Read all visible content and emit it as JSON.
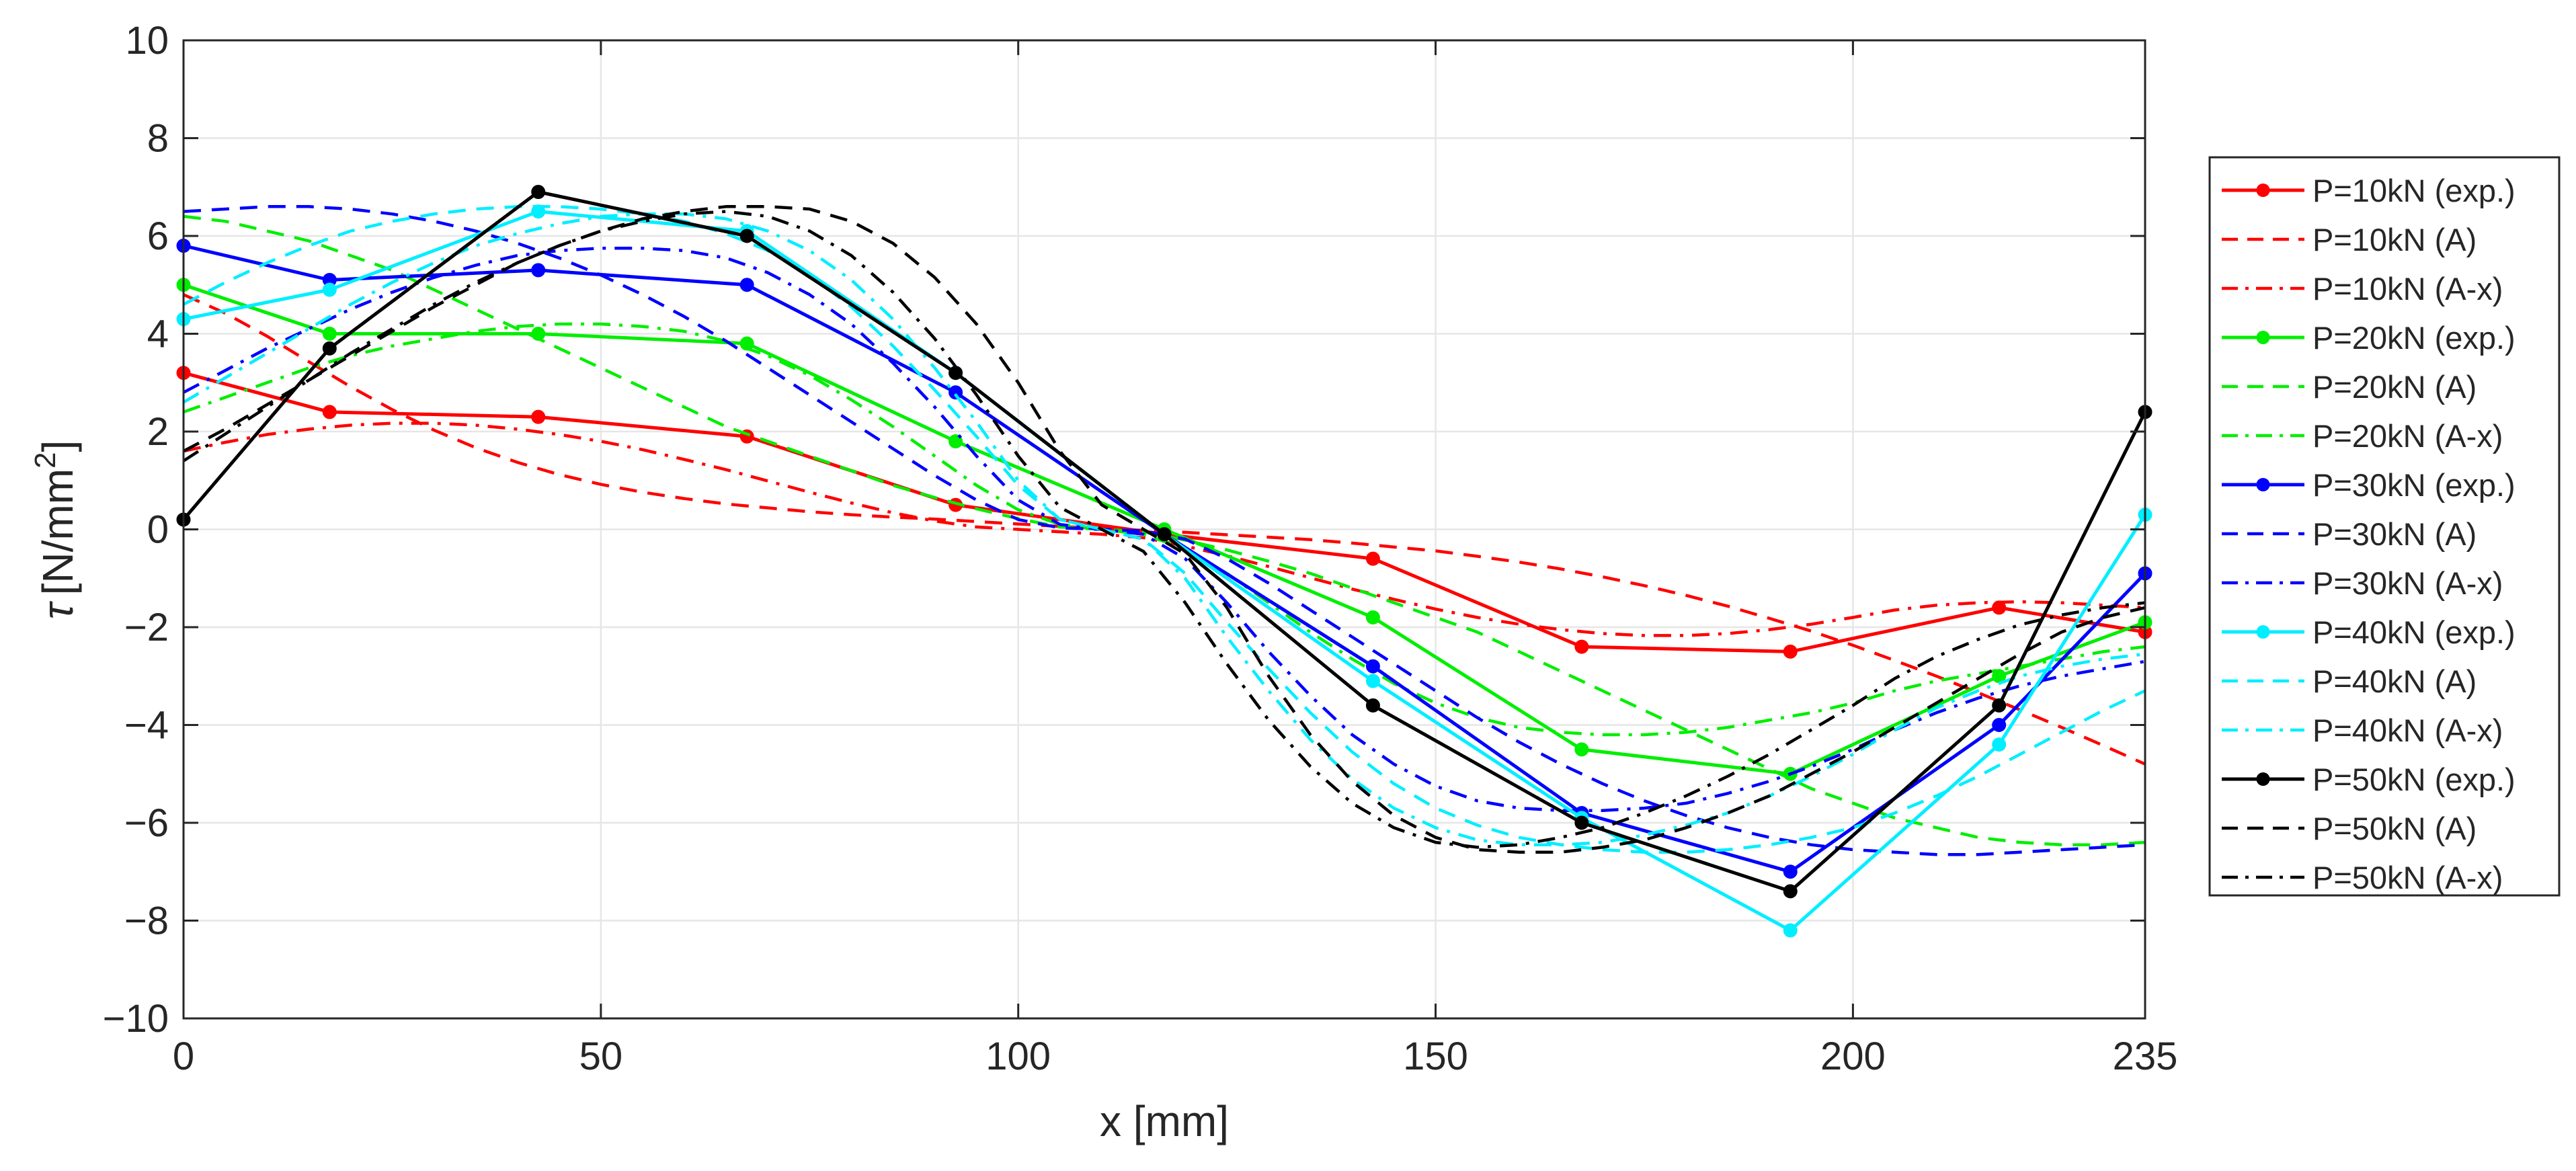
{
  "chart_data": {
    "type": "line",
    "title": "",
    "xlabel": "x [mm]",
    "ylabel_symbol": "τ",
    "ylabel_unit": "[N/mm",
    "ylabel_exp": "2",
    "ylabel_close": "]",
    "xlim": [
      0,
      235
    ],
    "ylim": [
      -10,
      10
    ],
    "xticks": [
      0,
      50,
      100,
      150,
      200,
      235
    ],
    "xtick_labels": [
      "0",
      "50",
      "100",
      "150",
      "200",
      "235"
    ],
    "yticks": [
      10,
      8,
      6,
      4,
      2,
      0,
      -2,
      -4,
      -6,
      -8,
      -10
    ],
    "ytick_labels": [
      "10",
      "8",
      "6",
      "4",
      "2",
      "0",
      "−2",
      "−4",
      "−6",
      "−8",
      "−10"
    ],
    "grid": true,
    "legend_position": "right-outside",
    "colors": {
      "p10": "#ff0000",
      "p20": "#00ee00",
      "p30": "#0000ff",
      "p40": "#00eeff",
      "p50": "#000000"
    },
    "experimental_x": [
      0,
      17.5,
      42.5,
      67.5,
      92.5,
      117.5,
      142.5,
      167.5,
      192.5,
      217.5,
      235
    ],
    "model_x": [
      0,
      5,
      10,
      15,
      20,
      25,
      30,
      35,
      40,
      45,
      50,
      55,
      60,
      65,
      70,
      75,
      80,
      85,
      90,
      95,
      100,
      105,
      110,
      115,
      120,
      125,
      130,
      135,
      140,
      145,
      150,
      155,
      160,
      165,
      170,
      175,
      180,
      185,
      190,
      195,
      200,
      205,
      210,
      215,
      220,
      225,
      230,
      235
    ],
    "series": [
      {
        "name": "P=10kN (exp.)",
        "key": "p10",
        "style": "exp",
        "values": [
          3.2,
          2.4,
          2.3,
          1.9,
          0.5,
          -0.1,
          -0.6,
          -2.4,
          -2.5,
          -1.6,
          -2.1
        ]
      },
      {
        "name": "P=10kN (A)",
        "key": "p10",
        "style": "dash",
        "values": [
          4.8,
          4.42,
          3.95,
          3.43,
          2.92,
          2.45,
          2.03,
          1.67,
          1.37,
          1.12,
          0.92,
          0.76,
          0.63,
          0.52,
          0.44,
          0.36,
          0.3,
          0.25,
          0.21,
          0.16,
          0.11,
          0.06,
          0.02,
          -0.02,
          -0.06,
          -0.11,
          -0.16,
          -0.21,
          -0.28,
          -0.36,
          -0.44,
          -0.55,
          -0.67,
          -0.81,
          -0.97,
          -1.15,
          -1.35,
          -1.57,
          -1.82,
          -2.08,
          -2.37,
          -2.68,
          -3.0,
          -3.34,
          -3.69,
          -4.05,
          -4.42,
          -4.8
        ]
      },
      {
        "name": "P=10kN (A-x)",
        "key": "p10",
        "style": "dashdot",
        "values": [
          1.6,
          1.78,
          1.94,
          2.05,
          2.13,
          2.17,
          2.17,
          2.13,
          2.05,
          1.94,
          1.8,
          1.63,
          1.43,
          1.22,
          0.99,
          0.76,
          0.54,
          0.34,
          0.17,
          0.05,
          0.0,
          -0.05,
          -0.1,
          -0.17,
          -0.34,
          -0.54,
          -0.76,
          -0.99,
          -1.22,
          -1.43,
          -1.63,
          -1.8,
          -1.94,
          -2.05,
          -2.13,
          -2.17,
          -2.17,
          -2.13,
          -2.05,
          -1.94,
          -1.8,
          -1.65,
          -1.55,
          -1.5,
          -1.48,
          -1.5,
          -1.55,
          -1.6
        ]
      },
      {
        "name": "P=20kN (exp.)",
        "key": "p20",
        "style": "exp",
        "values": [
          5.0,
          4.0,
          4.0,
          3.8,
          1.8,
          0.0,
          -1.8,
          -4.5,
          -5.0,
          -3.0,
          -1.9
        ]
      },
      {
        "name": "P=20kN (A)",
        "key": "p20",
        "style": "dash",
        "values": [
          6.4,
          6.3,
          6.1,
          5.9,
          5.6,
          5.3,
          4.9,
          4.5,
          4.1,
          3.7,
          3.3,
          2.9,
          2.5,
          2.1,
          1.8,
          1.5,
          1.2,
          0.9,
          0.65,
          0.42,
          0.22,
          0.05,
          0.0,
          -0.05,
          -0.22,
          -0.42,
          -0.65,
          -0.9,
          -1.2,
          -1.5,
          -1.8,
          -2.1,
          -2.5,
          -2.9,
          -3.3,
          -3.7,
          -4.1,
          -4.5,
          -4.9,
          -5.3,
          -5.6,
          -5.9,
          -6.1,
          -6.3,
          -6.4,
          -6.45,
          -6.45,
          -6.4
        ]
      },
      {
        "name": "P=20kN (A-x)",
        "key": "p20",
        "style": "dashdot",
        "values": [
          2.4,
          2.7,
          3.0,
          3.3,
          3.55,
          3.75,
          3.9,
          4.05,
          4.15,
          4.2,
          4.2,
          4.15,
          4.05,
          3.85,
          3.55,
          3.15,
          2.65,
          2.1,
          1.5,
          0.9,
          0.4,
          0.1,
          0.0,
          -0.1,
          -0.4,
          -0.9,
          -1.5,
          -2.1,
          -2.65,
          -3.15,
          -3.55,
          -3.85,
          -4.05,
          -4.15,
          -4.2,
          -4.2,
          -4.15,
          -4.05,
          -3.9,
          -3.75,
          -3.55,
          -3.3,
          -3.1,
          -2.95,
          -2.8,
          -2.65,
          -2.5,
          -2.4
        ]
      },
      {
        "name": "P=30kN (exp.)",
        "key": "p30",
        "style": "exp",
        "values": [
          5.8,
          5.1,
          5.3,
          5.0,
          2.8,
          -0.1,
          -2.8,
          -5.8,
          -7.0,
          -4.0,
          -0.9
        ]
      },
      {
        "name": "P=30kN (A)",
        "key": "p30",
        "style": "dash",
        "values": [
          6.5,
          6.55,
          6.6,
          6.6,
          6.55,
          6.45,
          6.3,
          6.1,
          5.85,
          5.55,
          5.2,
          4.8,
          4.35,
          3.85,
          3.3,
          2.75,
          2.2,
          1.65,
          1.1,
          0.6,
          0.2,
          0.03,
          0.0,
          -0.03,
          -0.2,
          -0.6,
          -1.1,
          -1.65,
          -2.2,
          -2.75,
          -3.3,
          -3.85,
          -4.35,
          -4.8,
          -5.2,
          -5.55,
          -5.85,
          -6.1,
          -6.3,
          -6.45,
          -6.55,
          -6.6,
          -6.65,
          -6.65,
          -6.6,
          -6.55,
          -6.5,
          -6.45
        ]
      },
      {
        "name": "P=30kN (A-x)",
        "key": "p30",
        "style": "dashdot",
        "values": [
          2.8,
          3.25,
          3.7,
          4.1,
          4.5,
          4.85,
          5.15,
          5.4,
          5.6,
          5.7,
          5.75,
          5.75,
          5.7,
          5.55,
          5.25,
          4.8,
          4.2,
          3.4,
          2.5,
          1.5,
          0.6,
          0.1,
          0.0,
          -0.1,
          -0.6,
          -1.5,
          -2.5,
          -3.4,
          -4.2,
          -4.8,
          -5.25,
          -5.55,
          -5.7,
          -5.75,
          -5.75,
          -5.7,
          -5.6,
          -5.4,
          -5.15,
          -4.85,
          -4.5,
          -4.1,
          -3.75,
          -3.45,
          -3.2,
          -3.0,
          -2.85,
          -2.7
        ]
      },
      {
        "name": "P=40kN (exp.)",
        "key": "p40",
        "style": "exp",
        "values": [
          4.3,
          4.9,
          6.5,
          6.1,
          3.2,
          -0.1,
          -3.1,
          -5.9,
          -8.2,
          -4.4,
          0.3
        ]
      },
      {
        "name": "P=40kN (A)",
        "key": "p40",
        "style": "dash",
        "values": [
          4.6,
          5.05,
          5.45,
          5.8,
          6.1,
          6.3,
          6.45,
          6.55,
          6.6,
          6.6,
          6.55,
          6.45,
          6.3,
          6.05,
          5.7,
          5.2,
          4.55,
          3.75,
          2.85,
          1.9,
          0.9,
          0.2,
          0.0,
          -0.2,
          -0.9,
          -1.9,
          -2.85,
          -3.75,
          -4.55,
          -5.2,
          -5.7,
          -6.05,
          -6.3,
          -6.45,
          -6.55,
          -6.6,
          -6.6,
          -6.55,
          -6.45,
          -6.3,
          -6.1,
          -5.8,
          -5.45,
          -5.05,
          -4.6,
          -4.15,
          -3.7,
          -3.3
        ]
      },
      {
        "name": "P=40kN (A-x)",
        "key": "p40",
        "style": "dashdot",
        "values": [
          2.6,
          3.1,
          3.6,
          4.1,
          4.6,
          5.05,
          5.45,
          5.8,
          6.05,
          6.25,
          6.4,
          6.45,
          6.45,
          6.35,
          6.1,
          5.7,
          5.1,
          4.3,
          3.3,
          2.2,
          1.0,
          0.2,
          0.0,
          -0.2,
          -1.0,
          -2.2,
          -3.3,
          -4.3,
          -5.1,
          -5.7,
          -6.1,
          -6.35,
          -6.45,
          -6.45,
          -6.4,
          -6.25,
          -6.05,
          -5.8,
          -5.45,
          -5.05,
          -4.6,
          -4.1,
          -3.65,
          -3.3,
          -3.0,
          -2.8,
          -2.65,
          -2.55
        ]
      },
      {
        "name": "P=50kN (exp.)",
        "key": "p50",
        "style": "exp",
        "values": [
          0.2,
          3.7,
          6.9,
          6.0,
          3.2,
          -0.1,
          -3.6,
          -6.0,
          -7.4,
          -3.6,
          2.4
        ]
      },
      {
        "name": "P=50kN (A)",
        "key": "p50",
        "style": "dash",
        "values": [
          1.6,
          2.05,
          2.55,
          3.05,
          3.55,
          4.05,
          4.55,
          5.0,
          5.45,
          5.8,
          6.1,
          6.35,
          6.5,
          6.6,
          6.6,
          6.55,
          6.3,
          5.85,
          5.15,
          4.2,
          3.0,
          1.6,
          0.5,
          0.0,
          -0.5,
          -1.6,
          -3.0,
          -4.2,
          -5.15,
          -5.85,
          -6.3,
          -6.55,
          -6.6,
          -6.6,
          -6.5,
          -6.35,
          -6.1,
          -5.8,
          -5.45,
          -5.0,
          -4.55,
          -4.05,
          -3.55,
          -3.05,
          -2.55,
          -2.1,
          -1.8,
          -1.6
        ]
      },
      {
        "name": "P=50kN (A-x)",
        "key": "p50",
        "style": "dashdot",
        "values": [
          1.4,
          1.95,
          2.5,
          3.05,
          3.6,
          4.1,
          4.6,
          5.05,
          5.45,
          5.8,
          6.1,
          6.3,
          6.45,
          6.5,
          6.4,
          6.1,
          5.6,
          4.85,
          3.9,
          2.75,
          1.5,
          0.45,
          0.0,
          -0.45,
          -1.5,
          -2.75,
          -3.9,
          -4.85,
          -5.6,
          -6.1,
          -6.4,
          -6.5,
          -6.45,
          -6.3,
          -6.1,
          -5.8,
          -5.45,
          -5.05,
          -4.6,
          -4.1,
          -3.6,
          -3.05,
          -2.6,
          -2.25,
          -1.95,
          -1.75,
          -1.6,
          -1.5
        ]
      }
    ]
  }
}
